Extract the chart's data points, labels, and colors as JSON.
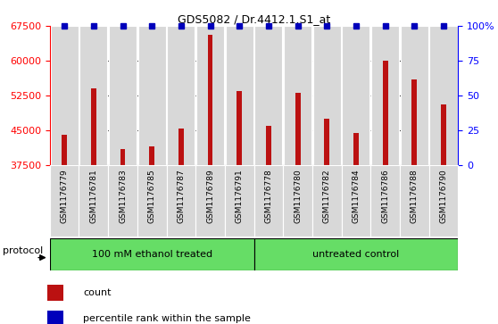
{
  "title": "GDS5082 / Dr.4412.1.S1_at",
  "samples": [
    "GSM1176779",
    "GSM1176781",
    "GSM1176783",
    "GSM1176785",
    "GSM1176787",
    "GSM1176789",
    "GSM1176791",
    "GSM1176778",
    "GSM1176780",
    "GSM1176782",
    "GSM1176784",
    "GSM1176786",
    "GSM1176788",
    "GSM1176790"
  ],
  "counts": [
    44000,
    54000,
    41000,
    41500,
    45500,
    65500,
    53500,
    46000,
    53000,
    47500,
    44500,
    60000,
    56000,
    50500
  ],
  "percentiles": [
    100,
    100,
    100,
    100,
    100,
    100,
    100,
    100,
    100,
    100,
    100,
    100,
    100,
    100
  ],
  "groups": [
    {
      "label": "100 mM ethanol treated",
      "count": 7,
      "color": "#66DD66"
    },
    {
      "label": "untreated control",
      "count": 7,
      "color": "#66DD66"
    }
  ],
  "bar_color": "#BB1111",
  "percentile_color": "#0000BB",
  "ylim_left": [
    37500,
    67500
  ],
  "ylim_right": [
    0,
    100
  ],
  "yticks_left": [
    37500,
    45000,
    52500,
    60000,
    67500
  ],
  "yticks_right": [
    0,
    25,
    50,
    75,
    100
  ],
  "bar_bg_color": "#D8D8D8",
  "bar_border_color": "#AAAAAA",
  "legend_red_label": "count",
  "legend_blue_label": "percentile rank within the sample",
  "protocol_label": "protocol"
}
